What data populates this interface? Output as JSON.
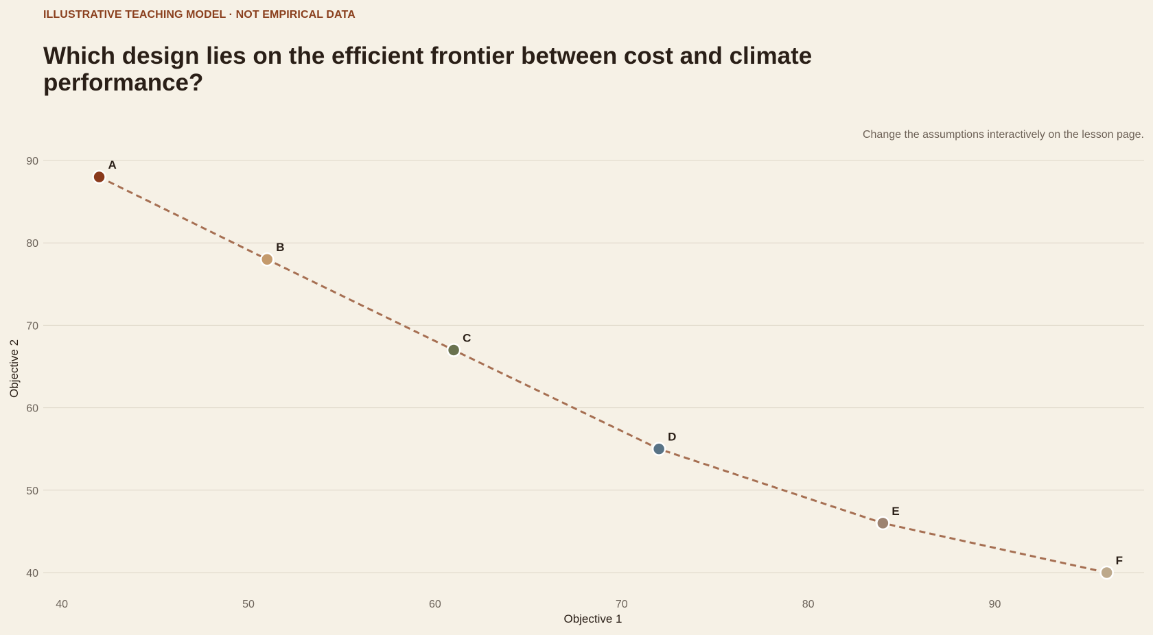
{
  "header": {
    "eyebrow": "ILLUSTRATIVE TEACHING MODEL · NOT EMPIRICAL DATA",
    "title": "Which design lies on the efficient frontier between cost and climate performance?",
    "note": "Change the assumptions interactively on the lesson page."
  },
  "chart_data": {
    "type": "scatter",
    "title": "Which design lies on the efficient frontier between cost and climate performance?",
    "xlabel": "Objective 1",
    "ylabel": "Objective 2",
    "xlim": [
      39,
      98
    ],
    "ylim": [
      38.5,
      91
    ],
    "xticks": [
      40,
      50,
      60,
      70,
      80,
      90
    ],
    "yticks": [
      40,
      50,
      60,
      70,
      80,
      90
    ],
    "grid": "horizontal",
    "points": [
      {
        "label": "A",
        "x": 42,
        "y": 88,
        "color": "#8a3a1c"
      },
      {
        "label": "B",
        "x": 51,
        "y": 78,
        "color": "#c49a6c"
      },
      {
        "label": "C",
        "x": 61,
        "y": 67,
        "color": "#69724f"
      },
      {
        "label": "D",
        "x": 72,
        "y": 55,
        "color": "#587386"
      },
      {
        "label": "E",
        "x": 84,
        "y": 46,
        "color": "#9d8371"
      },
      {
        "label": "F",
        "x": 96,
        "y": 40,
        "color": "#bda98c"
      }
    ],
    "frontier": {
      "style": "dashed",
      "color": "#a66f52",
      "through": [
        "A",
        "B",
        "C",
        "D",
        "E",
        "F"
      ]
    }
  }
}
